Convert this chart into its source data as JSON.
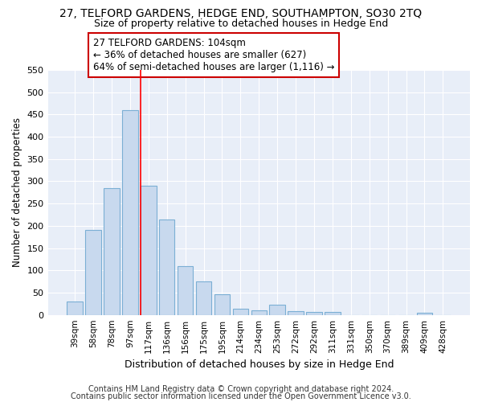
{
  "title": "27, TELFORD GARDENS, HEDGE END, SOUTHAMPTON, SO30 2TQ",
  "subtitle": "Size of property relative to detached houses in Hedge End",
  "xlabel": "Distribution of detached houses by size in Hedge End",
  "ylabel": "Number of detached properties",
  "categories": [
    "39sqm",
    "58sqm",
    "78sqm",
    "97sqm",
    "117sqm",
    "136sqm",
    "156sqm",
    "175sqm",
    "195sqm",
    "214sqm",
    "234sqm",
    "253sqm",
    "272sqm",
    "292sqm",
    "311sqm",
    "331sqm",
    "350sqm",
    "370sqm",
    "389sqm",
    "409sqm",
    "428sqm"
  ],
  "values": [
    30,
    190,
    285,
    460,
    290,
    215,
    110,
    75,
    47,
    13,
    10,
    22,
    8,
    6,
    6,
    0,
    0,
    0,
    0,
    5,
    0
  ],
  "bar_color": "#c8d9ee",
  "bar_edge_color": "#7bafd4",
  "red_line_x": 3.57,
  "annotation_text": "27 TELFORD GARDENS: 104sqm\n← 36% of detached houses are smaller (627)\n64% of semi-detached houses are larger (1,116) →",
  "annotation_box_color": "#ffffff",
  "annotation_box_edge_color": "#cc0000",
  "ylim": [
    0,
    550
  ],
  "yticks": [
    0,
    50,
    100,
    150,
    200,
    250,
    300,
    350,
    400,
    450,
    500,
    550
  ],
  "bg_color": "#e8eef8",
  "grid_color": "#ffffff",
  "fig_bg_color": "#ffffff",
  "footer1": "Contains HM Land Registry data © Crown copyright and database right 2024.",
  "footer2": "Contains public sector information licensed under the Open Government Licence v3.0.",
  "title_fontsize": 10,
  "subtitle_fontsize": 9,
  "ann_fontsize": 8.5
}
